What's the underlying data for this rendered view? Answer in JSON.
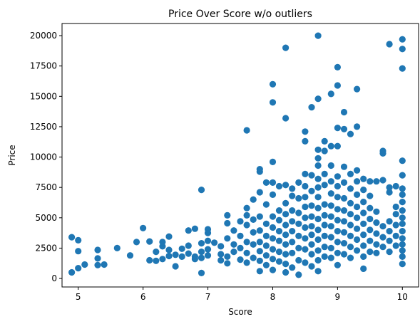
{
  "chart_data": {
    "type": "scatter",
    "title": "Price Over Score w/o outliers",
    "xlabel": "Score",
    "ylabel": "Price",
    "xlim": [
      4.75,
      10.25
    ],
    "ylim": [
      -700,
      21000
    ],
    "xticks": [
      5,
      6,
      7,
      8,
      9,
      10
    ],
    "yticks": [
      0,
      2500,
      5000,
      7500,
      10000,
      12500,
      15000,
      17500,
      20000
    ],
    "grid": false,
    "legend": "none",
    "marker_color": "#1f77b4",
    "points": [
      [
        4.9,
        3400
      ],
      [
        4.9,
        500
      ],
      [
        5.0,
        3150
      ],
      [
        5.0,
        2250
      ],
      [
        5.0,
        850
      ],
      [
        5.1,
        1150
      ],
      [
        5.3,
        2350
      ],
      [
        5.3,
        1650
      ],
      [
        5.3,
        1100
      ],
      [
        5.4,
        1150
      ],
      [
        5.6,
        2500
      ],
      [
        5.8,
        1900
      ],
      [
        5.9,
        3000
      ],
      [
        6.0,
        4150
      ],
      [
        6.1,
        3050
      ],
      [
        6.1,
        1500
      ],
      [
        6.2,
        1450
      ],
      [
        6.2,
        2200
      ],
      [
        6.3,
        1600
      ],
      [
        6.3,
        2650
      ],
      [
        6.3,
        3000
      ],
      [
        6.4,
        3450
      ],
      [
        6.4,
        1850
      ],
      [
        6.4,
        2350
      ],
      [
        6.5,
        1000
      ],
      [
        6.5,
        1950
      ],
      [
        6.6,
        2450
      ],
      [
        6.6,
        1800
      ],
      [
        6.7,
        2700
      ],
      [
        6.7,
        2050
      ],
      [
        6.7,
        3950
      ],
      [
        6.8,
        4100
      ],
      [
        6.8,
        1800
      ],
      [
        6.8,
        1600
      ],
      [
        6.9,
        7300
      ],
      [
        6.9,
        2900
      ],
      [
        6.9,
        2200
      ],
      [
        6.9,
        1700
      ],
      [
        6.9,
        450
      ],
      [
        7.0,
        4050
      ],
      [
        7.0,
        3750
      ],
      [
        7.0,
        3100
      ],
      [
        7.0,
        2400
      ],
      [
        7.0,
        1900
      ],
      [
        7.1,
        2950
      ],
      [
        7.2,
        2650
      ],
      [
        7.2,
        2000
      ],
      [
        7.2,
        1500
      ],
      [
        7.3,
        4550
      ],
      [
        7.3,
        3300
      ],
      [
        7.3,
        1800
      ],
      [
        7.3,
        1250
      ],
      [
        7.3,
        5200
      ],
      [
        7.4,
        2200
      ],
      [
        7.4,
        2800
      ],
      [
        7.4,
        3950
      ],
      [
        7.5,
        3500
      ],
      [
        7.5,
        4700
      ],
      [
        7.5,
        2500
      ],
      [
        7.5,
        1550
      ],
      [
        7.6,
        12200
      ],
      [
        7.6,
        5800
      ],
      [
        7.6,
        4400
      ],
      [
        7.6,
        3000
      ],
      [
        7.6,
        2100
      ],
      [
        7.6,
        1300
      ],
      [
        7.6,
        5200
      ],
      [
        7.7,
        4850
      ],
      [
        7.7,
        3800
      ],
      [
        7.7,
        2800
      ],
      [
        7.7,
        6500
      ],
      [
        7.7,
        1700
      ],
      [
        7.8,
        8800
      ],
      [
        7.8,
        9000
      ],
      [
        7.8,
        7100
      ],
      [
        7.8,
        5100
      ],
      [
        7.8,
        3950
      ],
      [
        7.8,
        3000
      ],
      [
        7.8,
        2250
      ],
      [
        7.8,
        1450
      ],
      [
        7.8,
        600
      ],
      [
        7.9,
        7900
      ],
      [
        7.9,
        6100
      ],
      [
        7.9,
        4500
      ],
      [
        7.9,
        3500
      ],
      [
        7.9,
        2700
      ],
      [
        7.9,
        1900
      ],
      [
        7.9,
        1100
      ],
      [
        8.0,
        16000
      ],
      [
        8.0,
        14500
      ],
      [
        8.0,
        9600
      ],
      [
        8.0,
        7900
      ],
      [
        8.0,
        6900
      ],
      [
        8.0,
        5100
      ],
      [
        8.0,
        4200
      ],
      [
        8.0,
        3300
      ],
      [
        8.0,
        2400
      ],
      [
        8.0,
        1600
      ],
      [
        8.0,
        700
      ],
      [
        8.1,
        7600
      ],
      [
        8.1,
        5600
      ],
      [
        8.1,
        4800
      ],
      [
        8.1,
        3900
      ],
      [
        8.1,
        3100
      ],
      [
        8.1,
        2200
      ],
      [
        8.1,
        1400
      ],
      [
        8.2,
        19000
      ],
      [
        8.2,
        13200
      ],
      [
        8.2,
        7700
      ],
      [
        8.2,
        6200
      ],
      [
        8.2,
        5300
      ],
      [
        8.2,
        4400
      ],
      [
        8.2,
        3600
      ],
      [
        8.2,
        2800
      ],
      [
        8.2,
        2000
      ],
      [
        8.2,
        1200
      ],
      [
        8.2,
        500
      ],
      [
        8.3,
        7400
      ],
      [
        8.3,
        6800
      ],
      [
        8.3,
        5600
      ],
      [
        8.3,
        4700
      ],
      [
        8.3,
        3900
      ],
      [
        8.3,
        3000
      ],
      [
        8.3,
        2100
      ],
      [
        8.3,
        900
      ],
      [
        8.4,
        7900
      ],
      [
        8.4,
        6600
      ],
      [
        8.4,
        5400
      ],
      [
        8.4,
        4500
      ],
      [
        8.4,
        3500
      ],
      [
        8.4,
        2500
      ],
      [
        8.4,
        1500
      ],
      [
        8.4,
        300
      ],
      [
        8.5,
        12100
      ],
      [
        8.5,
        11300
      ],
      [
        8.5,
        8600
      ],
      [
        8.5,
        7600
      ],
      [
        8.5,
        6700
      ],
      [
        8.5,
        5900
      ],
      [
        8.5,
        5000
      ],
      [
        8.5,
        4200
      ],
      [
        8.5,
        3300
      ],
      [
        8.5,
        2400
      ],
      [
        8.5,
        1300
      ],
      [
        8.6,
        14100
      ],
      [
        8.6,
        8500
      ],
      [
        8.6,
        7200
      ],
      [
        8.6,
        6000
      ],
      [
        8.6,
        5100
      ],
      [
        8.6,
        4300
      ],
      [
        8.6,
        3600
      ],
      [
        8.6,
        2800
      ],
      [
        8.6,
        2000
      ],
      [
        8.6,
        1000
      ],
      [
        8.7,
        20000
      ],
      [
        8.7,
        14800
      ],
      [
        8.7,
        10600
      ],
      [
        8.7,
        9900
      ],
      [
        8.7,
        9300
      ],
      [
        8.7,
        8200
      ],
      [
        8.7,
        7500
      ],
      [
        8.7,
        6700
      ],
      [
        8.7,
        5800
      ],
      [
        8.7,
        4900
      ],
      [
        8.7,
        4000
      ],
      [
        8.7,
        3200
      ],
      [
        8.7,
        2300
      ],
      [
        8.7,
        1500
      ],
      [
        8.7,
        600
      ],
      [
        8.8,
        11300
      ],
      [
        8.8,
        10500
      ],
      [
        8.8,
        8600
      ],
      [
        8.8,
        7700
      ],
      [
        8.8,
        6100
      ],
      [
        8.8,
        5200
      ],
      [
        8.8,
        4400
      ],
      [
        8.8,
        3500
      ],
      [
        8.8,
        2600
      ],
      [
        8.8,
        1800
      ],
      [
        8.9,
        15200
      ],
      [
        8.9,
        10900
      ],
      [
        8.9,
        9300
      ],
      [
        8.9,
        8000
      ],
      [
        8.9,
        7000
      ],
      [
        8.9,
        6000
      ],
      [
        8.9,
        5100
      ],
      [
        8.9,
        4300
      ],
      [
        8.9,
        3400
      ],
      [
        8.9,
        2500
      ],
      [
        8.9,
        1700
      ],
      [
        9.0,
        17400
      ],
      [
        9.0,
        15900
      ],
      [
        9.0,
        12400
      ],
      [
        9.0,
        10900
      ],
      [
        9.0,
        8400
      ],
      [
        9.0,
        7600
      ],
      [
        9.0,
        6700
      ],
      [
        9.0,
        5700
      ],
      [
        9.0,
        4800
      ],
      [
        9.0,
        3900
      ],
      [
        9.0,
        3000
      ],
      [
        9.0,
        2100
      ],
      [
        9.0,
        1100
      ],
      [
        9.1,
        13700
      ],
      [
        9.1,
        12300
      ],
      [
        9.1,
        9200
      ],
      [
        9.1,
        7900
      ],
      [
        9.1,
        6600
      ],
      [
        9.1,
        5600
      ],
      [
        9.1,
        4700
      ],
      [
        9.1,
        3800
      ],
      [
        9.1,
        2900
      ],
      [
        9.1,
        2000
      ],
      [
        9.2,
        11900
      ],
      [
        9.2,
        8600
      ],
      [
        9.2,
        7400
      ],
      [
        9.2,
        6200
      ],
      [
        9.2,
        5300
      ],
      [
        9.2,
        4400
      ],
      [
        9.2,
        3500
      ],
      [
        9.2,
        2600
      ],
      [
        9.2,
        1700
      ],
      [
        9.3,
        15600
      ],
      [
        9.3,
        12500
      ],
      [
        9.3,
        8900
      ],
      [
        9.3,
        8000
      ],
      [
        9.3,
        6900
      ],
      [
        9.3,
        5900
      ],
      [
        9.3,
        5000
      ],
      [
        9.3,
        4100
      ],
      [
        9.3,
        3200
      ],
      [
        9.3,
        2300
      ],
      [
        9.4,
        8200
      ],
      [
        9.4,
        7300
      ],
      [
        9.4,
        6300
      ],
      [
        9.4,
        5400
      ],
      [
        9.4,
        4500
      ],
      [
        9.4,
        3600
      ],
      [
        9.4,
        2700
      ],
      [
        9.4,
        1800
      ],
      [
        9.4,
        800
      ],
      [
        9.5,
        8000
      ],
      [
        9.5,
        6800
      ],
      [
        9.5,
        5800
      ],
      [
        9.5,
        4900
      ],
      [
        9.5,
        4000
      ],
      [
        9.5,
        3100
      ],
      [
        9.5,
        2200
      ],
      [
        9.6,
        8000
      ],
      [
        9.6,
        5500
      ],
      [
        9.6,
        4600
      ],
      [
        9.6,
        3700
      ],
      [
        9.6,
        2800
      ],
      [
        9.6,
        2100
      ],
      [
        9.7,
        10500
      ],
      [
        9.7,
        10300
      ],
      [
        9.7,
        8100
      ],
      [
        9.7,
        4300
      ],
      [
        9.7,
        3400
      ],
      [
        9.7,
        2600
      ],
      [
        9.8,
        19300
      ],
      [
        9.8,
        7500
      ],
      [
        9.8,
        7100
      ],
      [
        9.8,
        4700
      ],
      [
        9.8,
        3900
      ],
      [
        9.8,
        3100
      ],
      [
        9.8,
        2200
      ],
      [
        9.9,
        7600
      ],
      [
        9.9,
        5900
      ],
      [
        9.9,
        5300
      ],
      [
        9.9,
        4400
      ],
      [
        9.9,
        3500
      ],
      [
        9.9,
        2700
      ],
      [
        10.0,
        19700
      ],
      [
        10.0,
        18900
      ],
      [
        10.0,
        17300
      ],
      [
        10.0,
        9700
      ],
      [
        10.0,
        8500
      ],
      [
        10.0,
        6900
      ],
      [
        10.0,
        6300
      ],
      [
        10.0,
        5600
      ],
      [
        10.0,
        5000
      ],
      [
        10.0,
        4500
      ],
      [
        10.0,
        3900
      ],
      [
        10.0,
        3300
      ],
      [
        10.0,
        2800
      ],
      [
        10.0,
        2300
      ],
      [
        10.0,
        1800
      ],
      [
        10.0,
        1200
      ],
      [
        10.0,
        7400
      ]
    ]
  }
}
